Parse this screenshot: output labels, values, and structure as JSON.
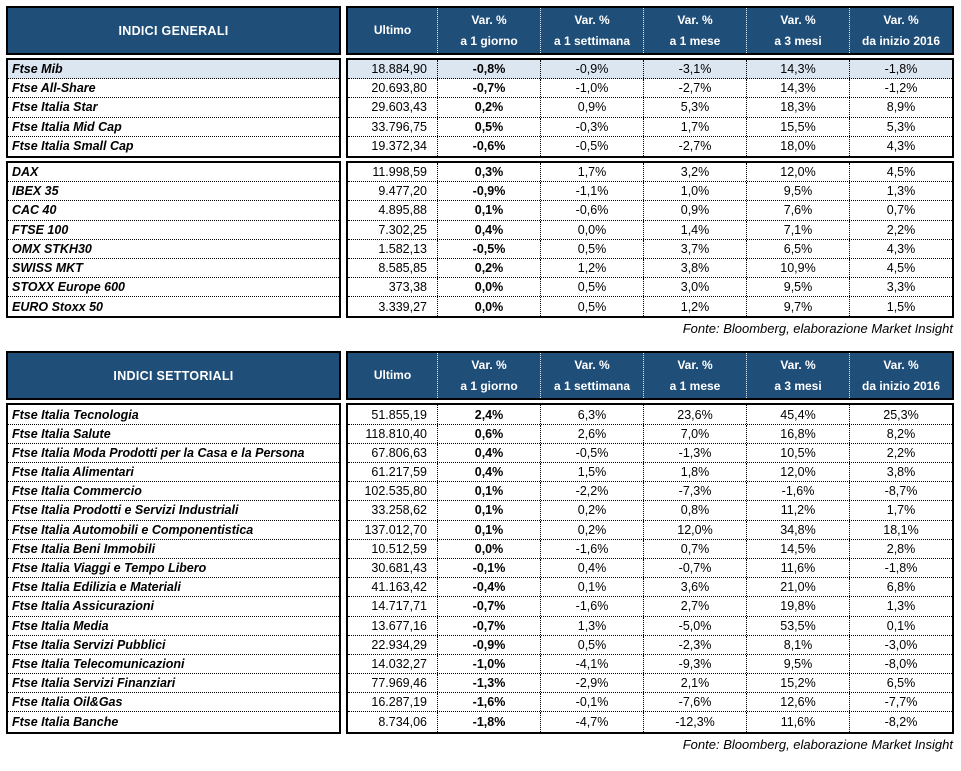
{
  "colors": {
    "header_bg": "#1F4E79",
    "highlight_row_bg": "#DCE6F1",
    "border": "#000000",
    "header_text": "#FFFFFF"
  },
  "columns": [
    {
      "line1": "Ultimo",
      "line2": ""
    },
    {
      "line1": "Var. %",
      "line2": "a 1 giorno"
    },
    {
      "line1": "Var. %",
      "line2": "a 1 settimana"
    },
    {
      "line1": "Var. %",
      "line2": "a 1 mese"
    },
    {
      "line1": "Var. %",
      "line2": "a 3 mesi"
    },
    {
      "line1": "Var. %",
      "line2": "da inizio 2016"
    }
  ],
  "tables": [
    {
      "title": "INDICI GENERALI",
      "fonte": "Fonte: Bloomberg, elaborazione Market Insight",
      "groups": [
        {
          "rows": [
            {
              "name": "Ftse Mib",
              "highlight": true,
              "values": [
                "18.884,90",
                "-0,8%",
                "-0,9%",
                "-3,1%",
                "14,3%",
                "-1,8%"
              ]
            },
            {
              "name": "Ftse All-Share",
              "highlight": false,
              "values": [
                "20.693,80",
                "-0,7%",
                "-1,0%",
                "-2,7%",
                "14,3%",
                "-1,2%"
              ]
            },
            {
              "name": "Ftse Italia Star",
              "highlight": false,
              "values": [
                "29.603,43",
                "0,2%",
                "0,9%",
                "5,3%",
                "18,3%",
                "8,9%"
              ]
            },
            {
              "name": "Ftse Italia Mid Cap",
              "highlight": false,
              "values": [
                "33.796,75",
                "0,5%",
                "-0,3%",
                "1,7%",
                "15,5%",
                "5,3%"
              ]
            },
            {
              "name": "Ftse Italia Small Cap",
              "highlight": false,
              "values": [
                "19.372,34",
                "-0,6%",
                "-0,5%",
                "-2,7%",
                "18,0%",
                "4,3%"
              ]
            }
          ]
        },
        {
          "rows": [
            {
              "name": "DAX",
              "highlight": false,
              "values": [
                "11.998,59",
                "0,3%",
                "1,7%",
                "3,2%",
                "12,0%",
                "4,5%"
              ]
            },
            {
              "name": "IBEX 35",
              "highlight": false,
              "values": [
                "9.477,20",
                "-0,9%",
                "-1,1%",
                "1,0%",
                "9,5%",
                "1,3%"
              ]
            },
            {
              "name": "CAC 40",
              "highlight": false,
              "values": [
                "4.895,88",
                "0,1%",
                "-0,6%",
                "0,9%",
                "7,6%",
                "0,7%"
              ]
            },
            {
              "name": "FTSE 100",
              "highlight": false,
              "values": [
                "7.302,25",
                "0,4%",
                "0,0%",
                "1,4%",
                "7,1%",
                "2,2%"
              ]
            },
            {
              "name": "OMX STKH30",
              "highlight": false,
              "values": [
                "1.582,13",
                "-0,5%",
                "0,5%",
                "3,7%",
                "6,5%",
                "4,3%"
              ]
            },
            {
              "name": "SWISS MKT",
              "highlight": false,
              "values": [
                "8.585,85",
                "0,2%",
                "1,2%",
                "3,8%",
                "10,9%",
                "4,5%"
              ]
            },
            {
              "name": "STOXX Europe 600",
              "highlight": false,
              "values": [
                "373,38",
                "0,0%",
                "0,5%",
                "3,0%",
                "9,5%",
                "3,3%"
              ]
            },
            {
              "name": "EURO Stoxx 50",
              "highlight": false,
              "values": [
                "3.339,27",
                "0,0%",
                "0,5%",
                "1,2%",
                "9,7%",
                "1,5%"
              ]
            }
          ]
        }
      ]
    },
    {
      "title": "INDICI SETTORIALI",
      "fonte": "Fonte: Bloomberg, elaborazione Market Insight",
      "groups": [
        {
          "rows": [
            {
              "name": "Ftse Italia Tecnologia",
              "highlight": false,
              "values": [
                "51.855,19",
                "2,4%",
                "6,3%",
                "23,6%",
                "45,4%",
                "25,3%"
              ]
            },
            {
              "name": "Ftse Italia Salute",
              "highlight": false,
              "values": [
                "118.810,40",
                "0,6%",
                "2,6%",
                "7,0%",
                "16,8%",
                "8,2%"
              ]
            },
            {
              "name": "Ftse Italia Moda Prodotti per la Casa e la Persona",
              "highlight": false,
              "values": [
                "67.806,63",
                "0,4%",
                "-0,5%",
                "-1,3%",
                "10,5%",
                "2,2%"
              ]
            },
            {
              "name": "Ftse Italia Alimentari",
              "highlight": false,
              "values": [
                "61.217,59",
                "0,4%",
                "1,5%",
                "1,8%",
                "12,0%",
                "3,8%"
              ]
            },
            {
              "name": "Ftse Italia Commercio",
              "highlight": false,
              "values": [
                "102.535,80",
                "0,1%",
                "-2,2%",
                "-7,3%",
                "-1,6%",
                "-8,7%"
              ]
            },
            {
              "name": "Ftse Italia Prodotti e Servizi Industriali",
              "highlight": false,
              "values": [
                "33.258,62",
                "0,1%",
                "0,2%",
                "0,8%",
                "11,2%",
                "1,7%"
              ]
            },
            {
              "name": "Ftse Italia Automobili e Componentistica",
              "highlight": false,
              "values": [
                "137.012,70",
                "0,1%",
                "0,2%",
                "12,0%",
                "34,8%",
                "18,1%"
              ]
            },
            {
              "name": "Ftse Italia Beni Immobili",
              "highlight": false,
              "values": [
                "10.512,59",
                "0,0%",
                "-1,6%",
                "0,7%",
                "14,5%",
                "2,8%"
              ]
            },
            {
              "name": "Ftse Italia Viaggi e Tempo Libero",
              "highlight": false,
              "values": [
                "30.681,43",
                "-0,1%",
                "0,4%",
                "-0,7%",
                "11,6%",
                "-1,8%"
              ]
            },
            {
              "name": "Ftse Italia Edilizia e Materiali",
              "highlight": false,
              "values": [
                "41.163,42",
                "-0,4%",
                "0,1%",
                "3,6%",
                "21,0%",
                "6,8%"
              ]
            },
            {
              "name": "Ftse Italia Assicurazioni",
              "highlight": false,
              "values": [
                "14.717,71",
                "-0,7%",
                "-1,6%",
                "2,7%",
                "19,8%",
                "1,3%"
              ]
            },
            {
              "name": "Ftse Italia Media",
              "highlight": false,
              "values": [
                "13.677,16",
                "-0,7%",
                "1,3%",
                "-5,0%",
                "53,5%",
                "0,1%"
              ]
            },
            {
              "name": "Ftse Italia Servizi Pubblici",
              "highlight": false,
              "values": [
                "22.934,29",
                "-0,9%",
                "0,5%",
                "-2,3%",
                "8,1%",
                "-3,0%"
              ]
            },
            {
              "name": "Ftse Italia Telecomunicazioni",
              "highlight": false,
              "values": [
                "14.032,27",
                "-1,0%",
                "-4,1%",
                "-9,3%",
                "9,5%",
                "-8,0%"
              ]
            },
            {
              "name": "Ftse Italia Servizi Finanziari",
              "highlight": false,
              "values": [
                "77.969,46",
                "-1,3%",
                "-2,9%",
                "2,1%",
                "15,2%",
                "6,5%"
              ]
            },
            {
              "name": "Ftse Italia Oil&Gas",
              "highlight": false,
              "values": [
                "16.287,19",
                "-1,6%",
                "-0,1%",
                "-7,6%",
                "12,6%",
                "-7,7%"
              ]
            },
            {
              "name": "Ftse Italia Banche",
              "highlight": false,
              "values": [
                "8.734,06",
                "-1,8%",
                "-4,7%",
                "-12,3%",
                "11,6%",
                "-8,2%"
              ]
            }
          ]
        }
      ]
    }
  ]
}
